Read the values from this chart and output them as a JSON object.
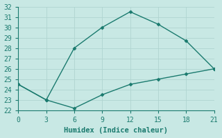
{
  "xlabel": "Humidex (Indice chaleur)",
  "line1_x": [
    0,
    3,
    6,
    9,
    12,
    15,
    18,
    21
  ],
  "line1_y": [
    24.5,
    23.0,
    28.0,
    30.0,
    31.5,
    30.3,
    28.7,
    26.0
  ],
  "line2_x": [
    0,
    3,
    6,
    9,
    12,
    15,
    18,
    21
  ],
  "line2_y": [
    24.5,
    23.0,
    22.2,
    23.5,
    24.5,
    25.0,
    25.5,
    26.0
  ],
  "line_color": "#1a7a6e",
  "bg_color": "#c8e8e4",
  "grid_color": "#b0d4d0",
  "axis_color": "#1a7a6e",
  "xlim": [
    0,
    21
  ],
  "ylim": [
    22,
    32
  ],
  "xticks": [
    0,
    3,
    6,
    9,
    12,
    15,
    18,
    21
  ],
  "yticks": [
    22,
    23,
    24,
    25,
    26,
    27,
    28,
    29,
    30,
    31,
    32
  ],
  "marker": "D",
  "markersize": 2.5,
  "linewidth": 1.0,
  "tick_labelsize": 7,
  "xlabel_fontsize": 7.5
}
